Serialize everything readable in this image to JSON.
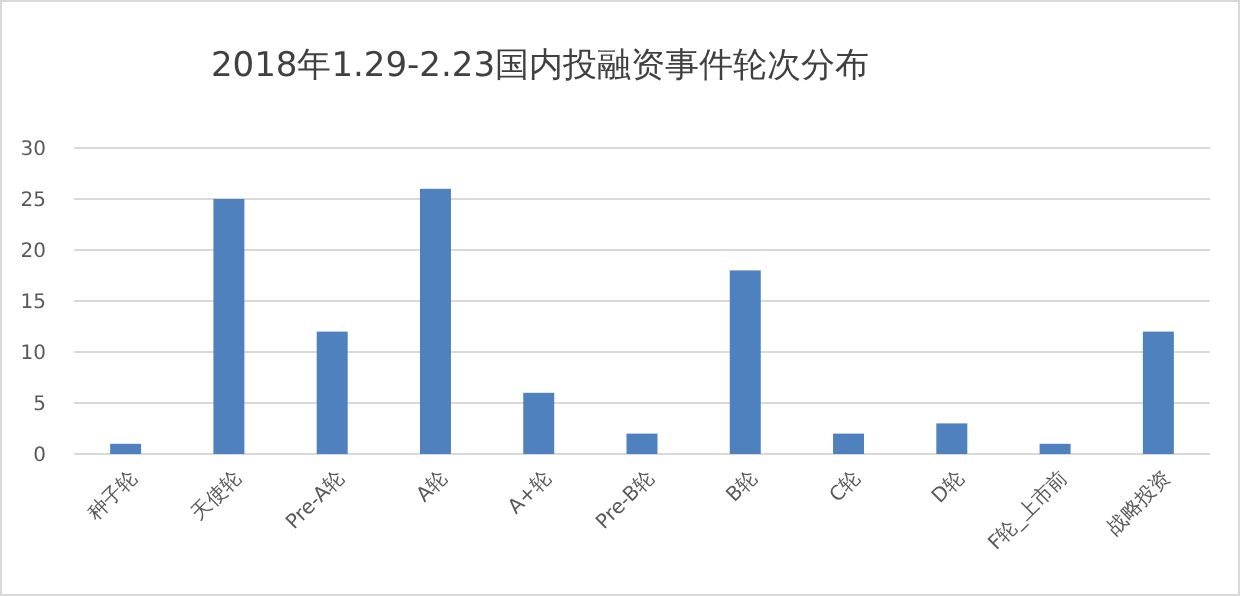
{
  "chart_data": {
    "type": "bar",
    "title": "2018年1.29-2.23国内投融资事件轮次分布",
    "categories": [
      "种子轮",
      "天使轮",
      "Pre-A轮",
      "A轮",
      "A+轮",
      "Pre-B轮",
      "B轮",
      "C轮",
      "D轮",
      "F轮_上市前",
      "战略投资"
    ],
    "values": [
      1,
      25,
      12,
      26,
      6,
      2,
      18,
      2,
      3,
      1,
      12
    ],
    "color": "#4e81bd",
    "ylim": [
      0,
      30
    ],
    "yticks": [
      0,
      5,
      10,
      15,
      20,
      25,
      30
    ],
    "grid": "y"
  }
}
